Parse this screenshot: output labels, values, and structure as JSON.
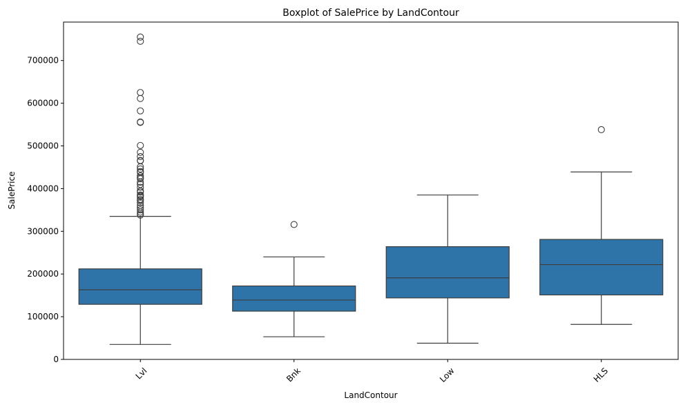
{
  "chart_data": {
    "type": "box",
    "title": "Boxplot of SalePrice by LandContour",
    "xlabel": "LandContour",
    "ylabel": "SalePrice",
    "ylim": [
      0,
      790000
    ],
    "yticks": [
      0,
      100000,
      200000,
      300000,
      400000,
      500000,
      600000,
      700000
    ],
    "ytick_labels": [
      "0",
      "100000",
      "200000",
      "300000",
      "400000",
      "500000",
      "600000",
      "700000"
    ],
    "grid": false,
    "box_color": "#2f74a8",
    "line_color": "#3d3d3d",
    "categories": [
      "Lvl",
      "Bnk",
      "Low",
      "HLS"
    ],
    "boxes": [
      {
        "category": "Lvl",
        "whisker_low": 35000,
        "q1": 129000,
        "median": 163000,
        "q3": 212000,
        "whisker_high": 335000,
        "fliers": [
          755000,
          745000,
          625000,
          611000,
          582000,
          556000,
          555000,
          501000,
          485000,
          475000,
          466000,
          465000,
          451000,
          446000,
          440000,
          438000,
          430000,
          426000,
          423000,
          415000,
          410000,
          403000,
          395000,
          392000,
          385000,
          383000,
          380000,
          375000,
          372000,
          367000,
          360000,
          355000,
          350000,
          345000,
          341000,
          338000
        ]
      },
      {
        "category": "Bnk",
        "whisker_low": 53000,
        "q1": 113000,
        "median": 139000,
        "q3": 172000,
        "whisker_high": 240000,
        "fliers": [
          316000
        ]
      },
      {
        "category": "Low",
        "whisker_low": 38000,
        "q1": 144000,
        "median": 191000,
        "q3": 264000,
        "whisker_high": 385000,
        "fliers": []
      },
      {
        "category": "HLS",
        "whisker_low": 82000,
        "q1": 151000,
        "median": 222000,
        "q3": 281000,
        "whisker_high": 439000,
        "fliers": [
          538000
        ]
      }
    ]
  }
}
